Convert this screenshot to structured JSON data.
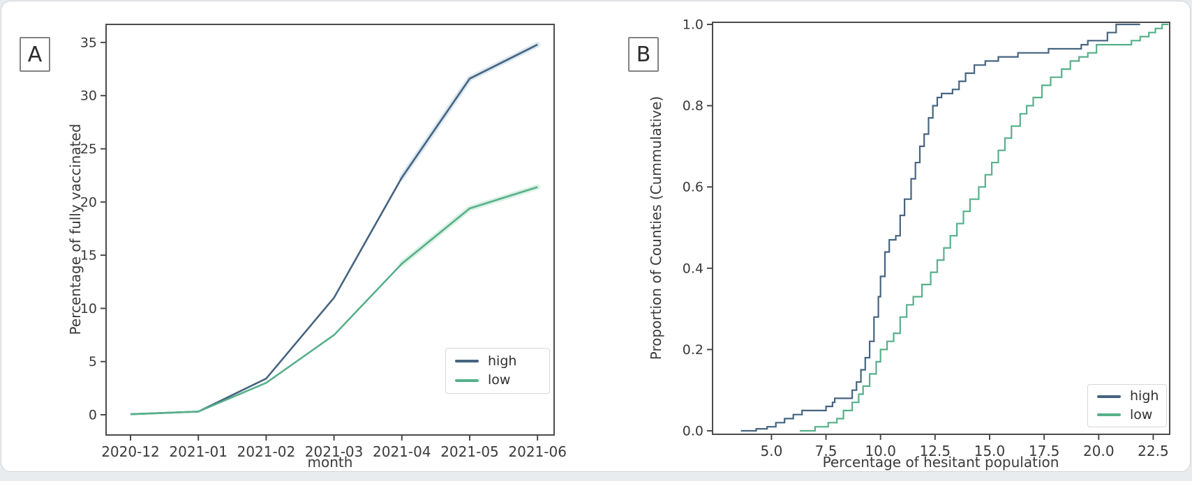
{
  "page": {
    "background": "#e9ecef",
    "card_background": "#ffffff",
    "frame_color": "#4a4a4a",
    "text_color": "#3a3a3a"
  },
  "panels": [
    {
      "tag": "A"
    },
    {
      "tag": "B"
    }
  ],
  "chart_data": [
    {
      "type": "line",
      "panel": "A",
      "title": "",
      "xlabel": "month",
      "ylabel": "Percentage of fully vaccinated",
      "grid": false,
      "legend_position": "lower right",
      "categories": [
        "2020-12",
        "2021-01",
        "2021-02",
        "2021-03",
        "2021-04",
        "2021-05",
        "2021-06"
      ],
      "ylim": [
        -1.9,
        36.7
      ],
      "yticks": {
        "values": [
          0,
          5,
          10,
          15,
          20,
          25,
          30,
          35
        ],
        "labels": [
          "0",
          "5",
          "10",
          "15",
          "20",
          "25",
          "30",
          "35"
        ]
      },
      "series": [
        {
          "name": "high",
          "color": "#466480",
          "band_color": "#c5d8e8",
          "values": [
            0.05,
            0.3,
            3.4,
            11.0,
            22.3,
            31.6,
            34.8
          ]
        },
        {
          "name": "low",
          "color": "#56b08a",
          "band_color": "#c4e8d4",
          "values": [
            0.05,
            0.3,
            3.0,
            7.5,
            14.2,
            19.4,
            21.4
          ]
        }
      ]
    },
    {
      "type": "line",
      "subtype": "ecdf_step",
      "panel": "B",
      "title": "",
      "xlabel": "Percentage of hesitant population",
      "ylabel": "Proportion of Counties (Cummulative)",
      "grid": false,
      "legend_position": "lower right",
      "xlim": [
        2.3,
        23.25
      ],
      "ylim": [
        0,
        1.005
      ],
      "xticks": {
        "values": [
          5,
          7.5,
          10,
          12.5,
          15,
          17.5,
          20,
          22.5
        ],
        "labels": [
          "5.0",
          "7.5",
          "10.0",
          "12.5",
          "15.0",
          "17.5",
          "20.0",
          "22.5"
        ]
      },
      "yticks": {
        "values": [
          0,
          0.2,
          0.4,
          0.6,
          0.8,
          1
        ],
        "labels": [
          "0.0",
          "0.2",
          "0.4",
          "0.6",
          "0.8",
          "1.0"
        ]
      },
      "series": [
        {
          "name": "high",
          "color": "#466480",
          "points": [
            [
              3.6,
              0
            ],
            [
              4.3,
              0.005
            ],
            [
              4.8,
              0.01
            ],
            [
              5.2,
              0.02
            ],
            [
              5.6,
              0.03
            ],
            [
              6.0,
              0.04
            ],
            [
              6.4,
              0.05
            ],
            [
              7.1,
              0.05
            ],
            [
              7.5,
              0.06
            ],
            [
              7.8,
              0.07
            ],
            [
              7.9,
              0.08
            ],
            [
              8.4,
              0.08
            ],
            [
              8.7,
              0.1
            ],
            [
              8.9,
              0.12
            ],
            [
              9.1,
              0.15
            ],
            [
              9.3,
              0.18
            ],
            [
              9.5,
              0.22
            ],
            [
              9.7,
              0.28
            ],
            [
              9.9,
              0.33
            ],
            [
              10.0,
              0.38
            ],
            [
              10.2,
              0.44
            ],
            [
              10.4,
              0.47
            ],
            [
              10.7,
              0.48
            ],
            [
              10.9,
              0.53
            ],
            [
              11.1,
              0.57
            ],
            [
              11.4,
              0.62
            ],
            [
              11.6,
              0.66
            ],
            [
              11.8,
              0.7
            ],
            [
              12.0,
              0.73
            ],
            [
              12.2,
              0.77
            ],
            [
              12.4,
              0.8
            ],
            [
              12.6,
              0.82
            ],
            [
              12.8,
              0.83
            ],
            [
              13.3,
              0.84
            ],
            [
              13.6,
              0.86
            ],
            [
              13.9,
              0.88
            ],
            [
              14.3,
              0.9
            ],
            [
              14.8,
              0.91
            ],
            [
              15.4,
              0.92
            ],
            [
              16.3,
              0.93
            ],
            [
              17.7,
              0.94
            ],
            [
              19.2,
              0.95
            ],
            [
              19.5,
              0.96
            ],
            [
              20.2,
              0.96
            ],
            [
              20.4,
              0.98
            ],
            [
              20.8,
              1.0
            ],
            [
              21.9,
              1.0
            ]
          ]
        },
        {
          "name": "low",
          "color": "#56b08a",
          "points": [
            [
              6.3,
              0
            ],
            [
              7.0,
              0.01
            ],
            [
              7.6,
              0.02
            ],
            [
              8.0,
              0.03
            ],
            [
              8.3,
              0.05
            ],
            [
              8.7,
              0.07
            ],
            [
              9.0,
              0.09
            ],
            [
              9.2,
              0.11
            ],
            [
              9.5,
              0.14
            ],
            [
              9.8,
              0.17
            ],
            [
              10.0,
              0.2
            ],
            [
              10.3,
              0.22
            ],
            [
              10.6,
              0.24
            ],
            [
              10.9,
              0.28
            ],
            [
              11.2,
              0.31
            ],
            [
              11.5,
              0.33
            ],
            [
              11.9,
              0.36
            ],
            [
              12.3,
              0.39
            ],
            [
              12.6,
              0.42
            ],
            [
              12.9,
              0.45
            ],
            [
              13.2,
              0.48
            ],
            [
              13.5,
              0.51
            ],
            [
              13.8,
              0.54
            ],
            [
              14.1,
              0.57
            ],
            [
              14.5,
              0.6
            ],
            [
              14.8,
              0.63
            ],
            [
              15.1,
              0.66
            ],
            [
              15.4,
              0.69
            ],
            [
              15.7,
              0.72
            ],
            [
              16.0,
              0.75
            ],
            [
              16.4,
              0.78
            ],
            [
              16.7,
              0.8
            ],
            [
              17.0,
              0.82
            ],
            [
              17.4,
              0.85
            ],
            [
              17.8,
              0.87
            ],
            [
              18.3,
              0.89
            ],
            [
              18.7,
              0.91
            ],
            [
              19.1,
              0.92
            ],
            [
              19.5,
              0.93
            ],
            [
              19.9,
              0.95
            ],
            [
              21.2,
              0.95
            ],
            [
              21.5,
              0.96
            ],
            [
              21.9,
              0.97
            ],
            [
              22.3,
              0.98
            ],
            [
              22.6,
              0.99
            ],
            [
              22.9,
              1.0
            ],
            [
              23.2,
              1.0
            ]
          ]
        }
      ]
    }
  ]
}
